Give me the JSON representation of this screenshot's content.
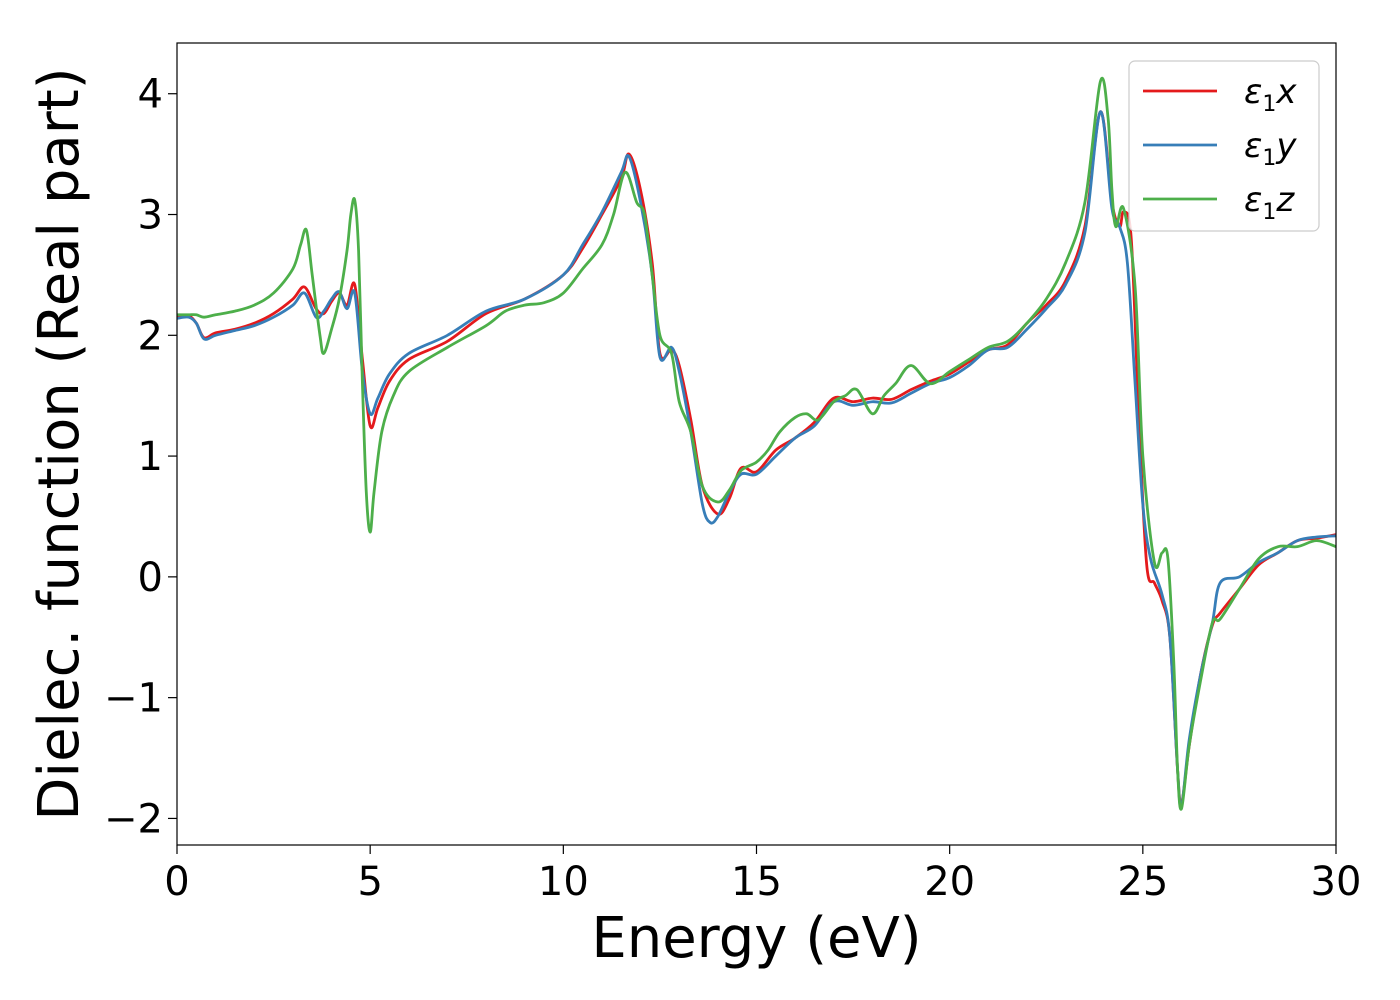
{
  "chart_data": {
    "type": "line",
    "title": "",
    "xlabel": "Energy (eV)",
    "ylabel": "Dielec. function (Real part)",
    "xlim": [
      0,
      30
    ],
    "ylim": [
      -2.22,
      4.42
    ],
    "xticks": [
      0,
      5,
      10,
      15,
      20,
      25,
      30
    ],
    "xtick_labels": [
      "0",
      "5",
      "10",
      "15",
      "20",
      "25",
      "30"
    ],
    "yticks": [
      -2,
      -1,
      0,
      1,
      2,
      3,
      4
    ],
    "ytick_labels": [
      "−2",
      "−1",
      "0",
      "1",
      "2",
      "3",
      "4"
    ],
    "grid": false,
    "legend_position": "top-right",
    "series": [
      {
        "name": "ε₁x",
        "label_main": "ε",
        "label_sub": "1",
        "label_tail": "x",
        "color": "#e41a1c",
        "x": [
          0,
          0.3,
          0.5,
          0.7,
          1.0,
          1.5,
          2.0,
          2.5,
          3.0,
          3.3,
          3.6,
          3.8,
          4.0,
          4.2,
          4.4,
          4.6,
          4.8,
          5.0,
          5.2,
          5.5,
          6.0,
          7.0,
          8.0,
          9.0,
          10.0,
          10.5,
          11.0,
          11.5,
          11.7,
          12.0,
          12.3,
          12.5,
          12.8,
          13.0,
          13.3,
          13.6,
          14.0,
          14.3,
          14.6,
          15.0,
          15.5,
          16.0,
          16.5,
          17.0,
          17.5,
          18.0,
          18.5,
          19.0,
          19.5,
          20.0,
          20.5,
          21.0,
          21.5,
          22.0,
          22.5,
          23.0,
          23.5,
          23.9,
          24.2,
          24.4,
          24.5,
          24.7,
          24.9,
          25.1,
          25.3,
          25.5,
          25.7,
          25.9,
          26.0,
          26.2,
          26.5,
          26.8,
          27.0,
          27.5,
          28.0,
          28.5,
          29.0,
          29.5,
          30.0
        ],
        "y": [
          2.15,
          2.16,
          2.1,
          1.98,
          2.02,
          2.05,
          2.1,
          2.18,
          2.3,
          2.4,
          2.22,
          2.18,
          2.28,
          2.35,
          2.25,
          2.42,
          1.8,
          1.25,
          1.4,
          1.62,
          1.8,
          1.95,
          2.18,
          2.3,
          2.5,
          2.72,
          3.0,
          3.3,
          3.5,
          3.2,
          2.6,
          1.85,
          1.88,
          1.75,
          1.3,
          0.75,
          0.52,
          0.65,
          0.9,
          0.87,
          1.05,
          1.15,
          1.28,
          1.48,
          1.45,
          1.48,
          1.47,
          1.55,
          1.62,
          1.68,
          1.78,
          1.88,
          1.92,
          2.1,
          2.25,
          2.45,
          2.9,
          3.85,
          3.1,
          2.9,
          3.02,
          2.8,
          1.3,
          0.1,
          -0.05,
          -0.2,
          -0.5,
          -1.6,
          -1.88,
          -1.4,
          -0.8,
          -0.4,
          -0.3,
          -0.1,
          0.1,
          0.2,
          0.3,
          0.32,
          0.35
        ]
      },
      {
        "name": "ε₁y",
        "label_main": "ε",
        "label_sub": "1",
        "label_tail": "y",
        "color": "#377eb8",
        "x": [
          0,
          0.3,
          0.5,
          0.7,
          1.0,
          1.5,
          2.0,
          2.5,
          3.0,
          3.3,
          3.6,
          3.8,
          4.0,
          4.2,
          4.4,
          4.6,
          4.8,
          5.0,
          5.2,
          5.5,
          6.0,
          7.0,
          8.0,
          9.0,
          10.0,
          10.5,
          11.0,
          11.5,
          11.7,
          12.0,
          12.3,
          12.5,
          12.8,
          13.0,
          13.3,
          13.6,
          13.8,
          14.0,
          14.3,
          14.6,
          15.0,
          15.5,
          16.0,
          16.5,
          17.0,
          17.5,
          18.0,
          18.5,
          19.0,
          19.5,
          20.0,
          20.5,
          21.0,
          21.5,
          22.0,
          22.5,
          23.0,
          23.5,
          23.9,
          24.2,
          24.4,
          24.6,
          24.8,
          25.0,
          25.2,
          25.5,
          25.7,
          25.9,
          26.0,
          26.2,
          26.5,
          26.8,
          27.0,
          27.5,
          28.0,
          28.5,
          29.0,
          29.5,
          30.0
        ],
        "y": [
          2.14,
          2.15,
          2.1,
          1.97,
          2.0,
          2.04,
          2.08,
          2.15,
          2.25,
          2.35,
          2.15,
          2.2,
          2.3,
          2.36,
          2.22,
          2.35,
          1.7,
          1.35,
          1.48,
          1.68,
          1.85,
          2.0,
          2.2,
          2.3,
          2.5,
          2.75,
          3.02,
          3.35,
          3.48,
          3.1,
          2.5,
          1.82,
          1.9,
          1.7,
          1.2,
          0.6,
          0.45,
          0.5,
          0.7,
          0.85,
          0.85,
          1.0,
          1.15,
          1.25,
          1.45,
          1.42,
          1.45,
          1.44,
          1.52,
          1.6,
          1.65,
          1.75,
          1.88,
          1.9,
          2.05,
          2.22,
          2.42,
          2.85,
          3.85,
          3.05,
          2.9,
          2.6,
          1.6,
          0.6,
          0.15,
          -0.15,
          -0.5,
          -1.6,
          -1.9,
          -1.35,
          -0.8,
          -0.38,
          -0.05,
          0.0,
          0.12,
          0.2,
          0.3,
          0.33,
          0.34
        ]
      },
      {
        "name": "ε₁z",
        "label_main": "ε",
        "label_sub": "1",
        "label_tail": "z",
        "color": "#4daf4a",
        "x": [
          0,
          0.3,
          0.5,
          0.7,
          1.0,
          1.5,
          2.0,
          2.5,
          3.0,
          3.2,
          3.35,
          3.5,
          3.7,
          3.8,
          4.0,
          4.2,
          4.4,
          4.5,
          4.6,
          4.7,
          4.8,
          4.9,
          5.0,
          5.1,
          5.3,
          5.6,
          6.0,
          7.0,
          8.0,
          8.5,
          9.0,
          9.5,
          10.0,
          10.5,
          11.0,
          11.3,
          11.6,
          11.9,
          12.1,
          12.3,
          12.5,
          12.8,
          13.0,
          13.3,
          13.6,
          14.0,
          14.3,
          14.6,
          15.0,
          15.3,
          15.6,
          16.0,
          16.3,
          16.6,
          17.0,
          17.3,
          17.6,
          18.0,
          18.3,
          18.6,
          19.0,
          19.5,
          20.0,
          20.5,
          21.0,
          21.5,
          22.0,
          22.5,
          23.0,
          23.5,
          23.9,
          24.1,
          24.2,
          24.3,
          24.5,
          24.8,
          25.0,
          25.3,
          25.5,
          25.65,
          25.8,
          25.9,
          26.0,
          26.2,
          26.5,
          26.8,
          27.0,
          27.5,
          28.0,
          28.5,
          29.0,
          29.5,
          30.0
        ],
        "y": [
          2.17,
          2.17,
          2.17,
          2.15,
          2.17,
          2.2,
          2.25,
          2.35,
          2.55,
          2.75,
          2.87,
          2.5,
          2.0,
          1.85,
          2.05,
          2.3,
          2.7,
          3.0,
          3.12,
          2.7,
          1.6,
          0.7,
          0.37,
          0.7,
          1.2,
          1.5,
          1.7,
          1.9,
          2.08,
          2.2,
          2.25,
          2.27,
          2.35,
          2.55,
          2.75,
          3.0,
          3.35,
          3.1,
          3.0,
          2.5,
          2.0,
          1.85,
          1.45,
          1.2,
          0.75,
          0.62,
          0.72,
          0.88,
          0.95,
          1.05,
          1.2,
          1.32,
          1.35,
          1.3,
          1.45,
          1.5,
          1.55,
          1.35,
          1.5,
          1.6,
          1.75,
          1.6,
          1.7,
          1.8,
          1.9,
          1.95,
          2.1,
          2.3,
          2.6,
          3.1,
          4.1,
          3.8,
          3.2,
          2.9,
          3.05,
          2.4,
          1.0,
          0.12,
          0.2,
          0.15,
          -0.7,
          -1.6,
          -1.92,
          -1.4,
          -0.85,
          -0.38,
          -0.35,
          -0.1,
          0.15,
          0.25,
          0.25,
          0.3,
          0.25
        ]
      }
    ]
  }
}
